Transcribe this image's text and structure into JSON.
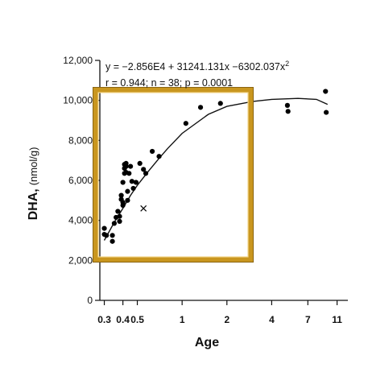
{
  "chart_data": {
    "type": "scatter",
    "title": "",
    "xlabel": "Age",
    "ylabel": "DHA,",
    "ylabel_unit": "(nmol/g)",
    "equation_parts": [
      "y = −2.856E4 + 31241.131x −6302.037x",
      "2"
    ],
    "stats_text": "r = 0.944; n = 38; p = 0.0001",
    "x_scale": "log",
    "xlim": [
      0.28,
      13
    ],
    "ylim": [
      0,
      12000
    ],
    "x_ticks": [
      0.3,
      0.4,
      0.5,
      1,
      2,
      4,
      7,
      11
    ],
    "x_tick_labels": [
      "0.3",
      "0.4",
      "0.5",
      "1",
      "2",
      "4",
      "7",
      "11"
    ],
    "y_ticks": [
      0,
      2000,
      4000,
      6000,
      8000,
      10000,
      12000
    ],
    "y_tick_labels": [
      "0",
      "2,000",
      "4,000",
      "6,000",
      "8,000",
      "10,000",
      "12,000"
    ],
    "grid": false,
    "legend": "none",
    "series": [
      {
        "marker": "dot",
        "color": "#000000",
        "points": [
          [
            0.3,
            3600
          ],
          [
            0.3,
            3300
          ],
          [
            0.31,
            3250
          ],
          [
            0.34,
            3250
          ],
          [
            0.34,
            2950
          ],
          [
            0.35,
            3850
          ],
          [
            0.36,
            4150
          ],
          [
            0.37,
            4450
          ],
          [
            0.38,
            4200
          ],
          [
            0.38,
            3950
          ],
          [
            0.39,
            5250
          ],
          [
            0.39,
            5050
          ],
          [
            0.4,
            4900
          ],
          [
            0.4,
            4750
          ],
          [
            0.4,
            5900
          ],
          [
            0.41,
            6800
          ],
          [
            0.41,
            6600
          ],
          [
            0.41,
            6350
          ],
          [
            0.42,
            6850
          ],
          [
            0.42,
            6700
          ],
          [
            0.42,
            6400
          ],
          [
            0.43,
            5000
          ],
          [
            0.43,
            5450
          ],
          [
            0.44,
            6350
          ],
          [
            0.45,
            6700
          ],
          [
            0.46,
            5950
          ],
          [
            0.47,
            5600
          ],
          [
            0.49,
            5900
          ],
          [
            0.52,
            6850
          ],
          [
            0.55,
            6550
          ],
          [
            0.57,
            6350
          ],
          [
            0.63,
            7450
          ],
          [
            0.7,
            7200
          ],
          [
            1.06,
            8850
          ],
          [
            1.33,
            9650
          ],
          [
            1.81,
            9850
          ],
          [
            5.1,
            9750
          ],
          [
            5.15,
            9450
          ]
        ]
      },
      {
        "marker": "x",
        "color": "#000000",
        "points": [
          [
            0.55,
            4600
          ]
        ]
      }
    ],
    "extra_points_right": [
      [
        9.2,
        10450
      ],
      [
        9.3,
        9400
      ]
    ],
    "fit_curve": {
      "type": "quadratic-trend",
      "points": [
        [
          0.3,
          3000
        ],
        [
          0.35,
          3900
        ],
        [
          0.4,
          4600
        ],
        [
          0.45,
          5250
        ],
        [
          0.5,
          5750
        ],
        [
          0.6,
          6500
        ],
        [
          0.7,
          7100
        ],
        [
          0.8,
          7600
        ],
        [
          1.0,
          8350
        ],
        [
          1.5,
          9300
        ],
        [
          2.0,
          9700
        ],
        [
          3.0,
          9950
        ],
        [
          4.0,
          10050
        ],
        [
          6.0,
          10100
        ],
        [
          8.0,
          10050
        ],
        [
          9.5,
          9800
        ]
      ]
    },
    "highlight_box": {
      "color": "#c9961f",
      "label": ""
    }
  }
}
